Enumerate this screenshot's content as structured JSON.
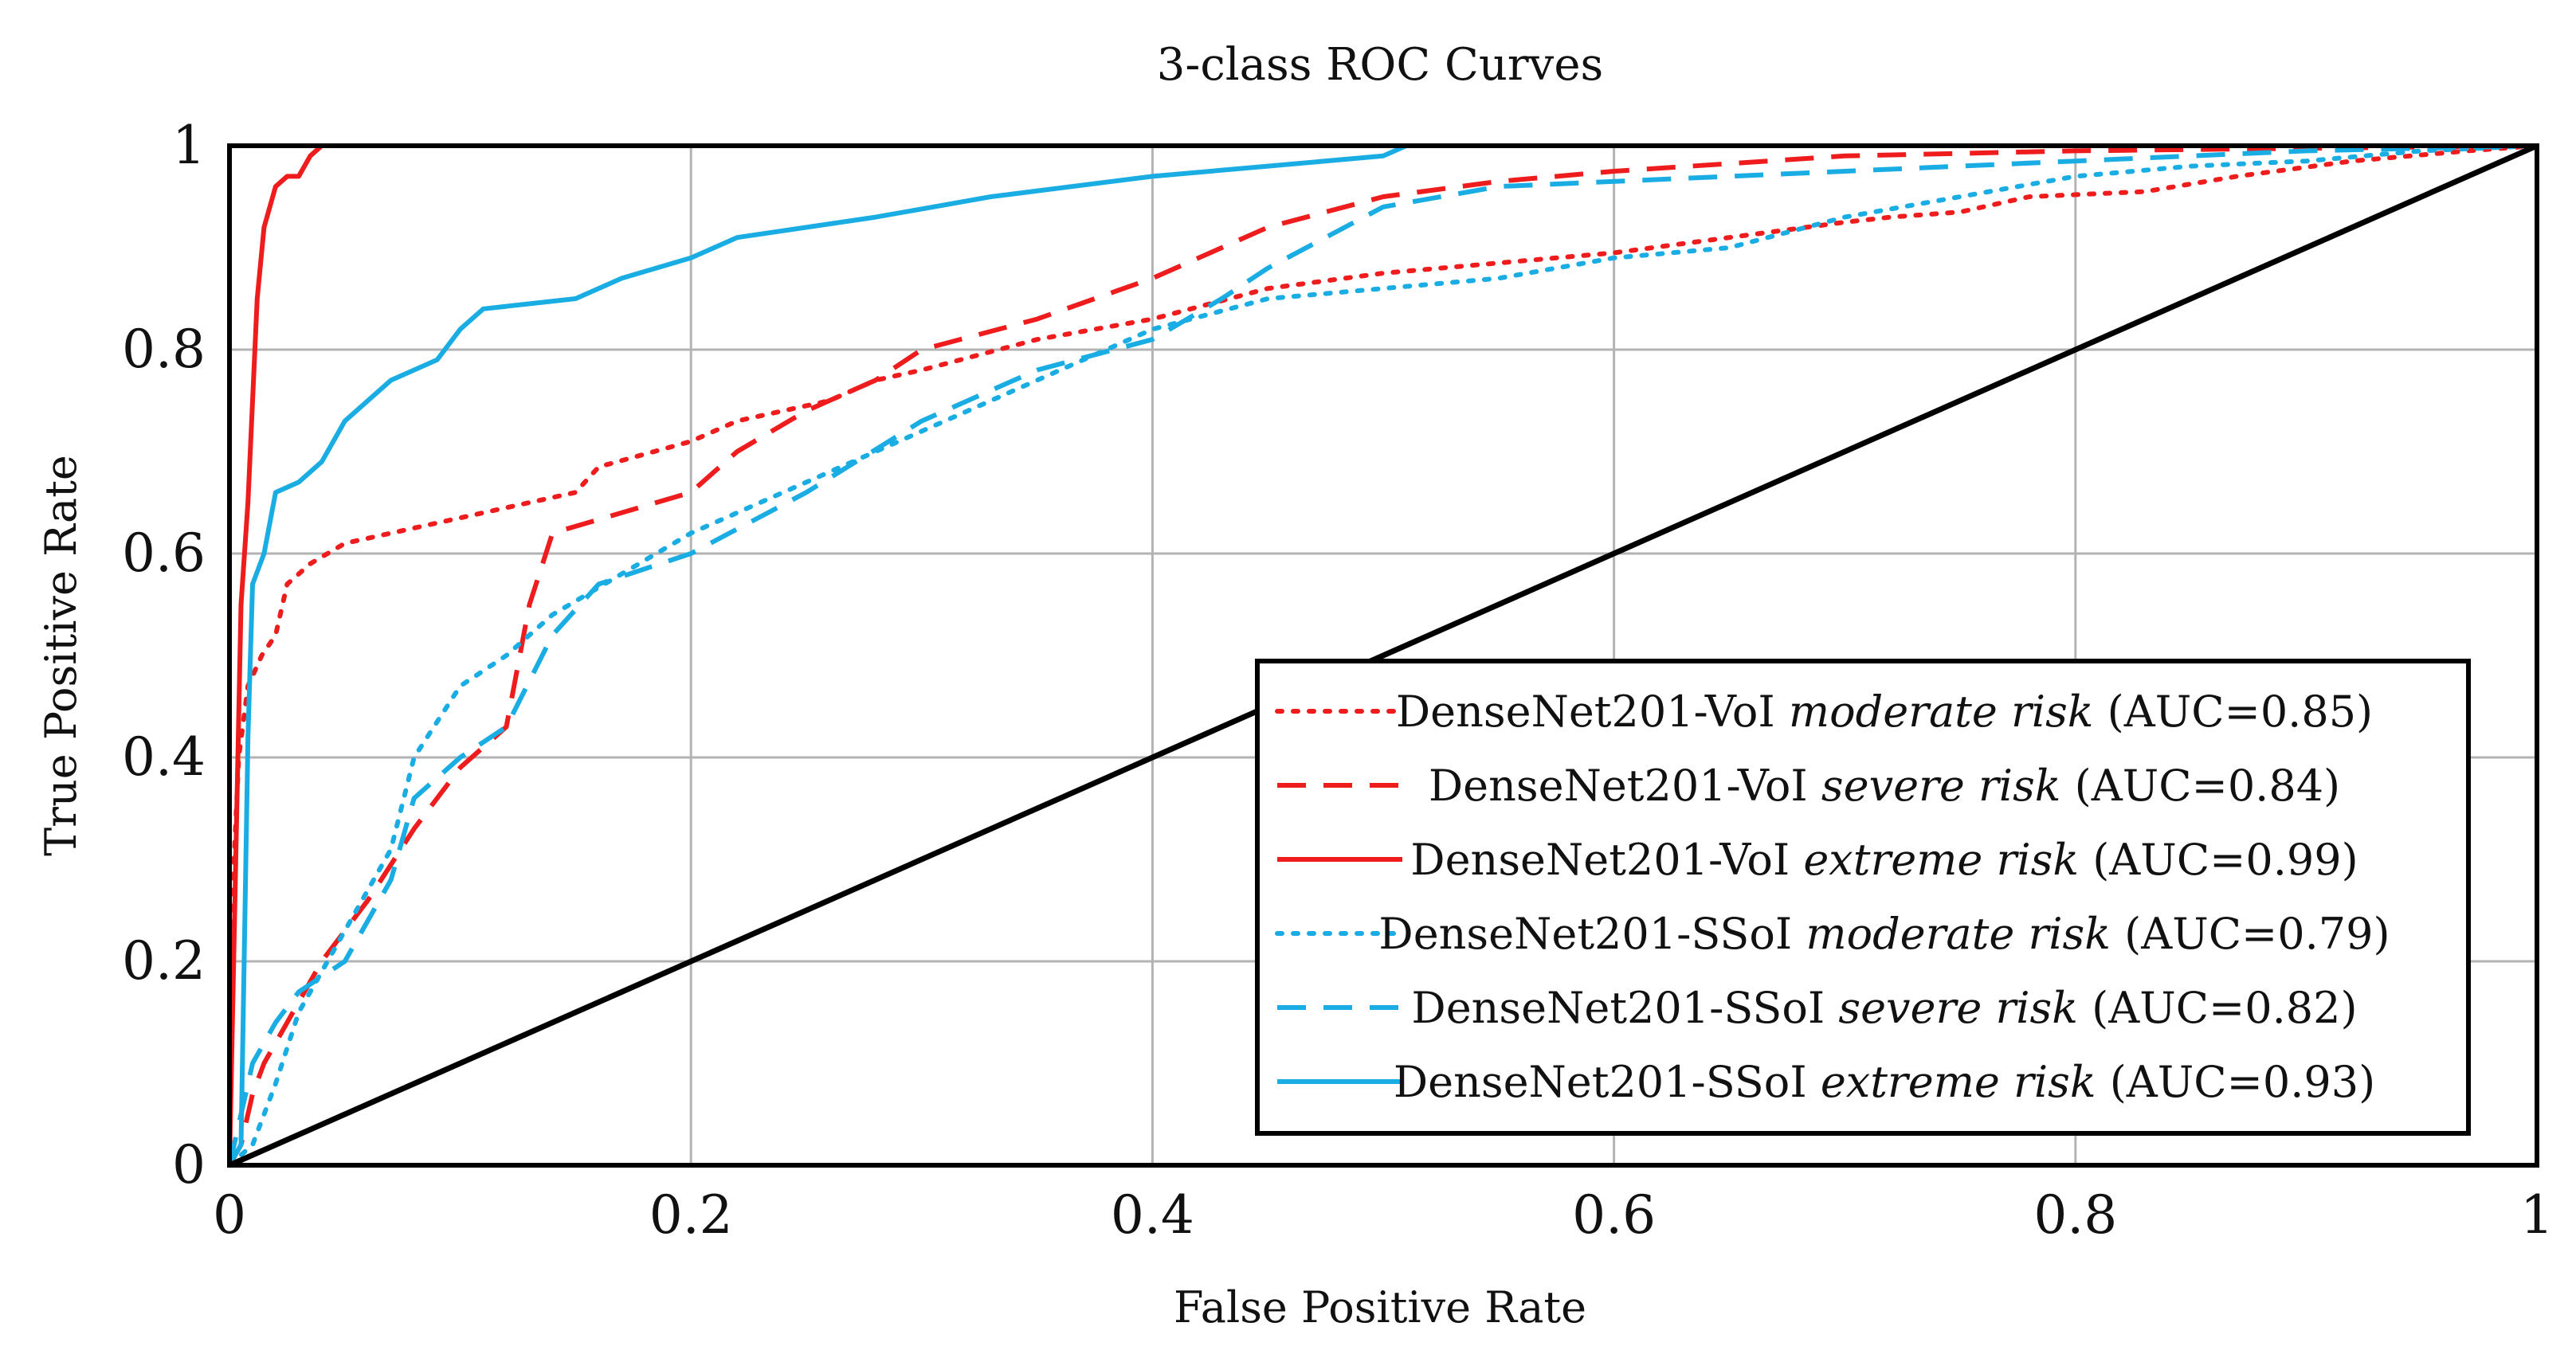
{
  "chart_data": {
    "type": "line",
    "title": "3-class ROC Curves",
    "xlabel": "False Positive Rate",
    "ylabel": "True Positive Rate",
    "xlim": [
      0,
      1
    ],
    "ylim": [
      0,
      1
    ],
    "grid": true,
    "legend_position": "bottom-right",
    "x_ticks": [
      0,
      0.2,
      0.4,
      0.6,
      0.8,
      1
    ],
    "y_ticks": [
      0,
      0.2,
      0.4,
      0.6,
      0.8,
      1
    ],
    "x_tick_labels": [
      "0",
      "0.2",
      "0.4",
      "0.6",
      "0.8",
      "1"
    ],
    "y_tick_labels": [
      "0",
      "0.2",
      "0.4",
      "0.6",
      "0.8",
      "1"
    ],
    "series": [
      {
        "name": "DenseNet201-VoI moderate risk (AUC=0.85)",
        "model": "DenseNet201-VoI",
        "risk": "moderate risk",
        "auc_label": "(AUC=0.85)",
        "color": "#ee1c1c",
        "style": "dotted",
        "points": [
          [
            0,
            0
          ],
          [
            0.002,
            0.3
          ],
          [
            0.004,
            0.4
          ],
          [
            0.008,
            0.47
          ],
          [
            0.014,
            0.5
          ],
          [
            0.02,
            0.52
          ],
          [
            0.025,
            0.57
          ],
          [
            0.035,
            0.59
          ],
          [
            0.05,
            0.61
          ],
          [
            0.08,
            0.625
          ],
          [
            0.12,
            0.645
          ],
          [
            0.15,
            0.66
          ],
          [
            0.16,
            0.685
          ],
          [
            0.2,
            0.71
          ],
          [
            0.22,
            0.73
          ],
          [
            0.26,
            0.75
          ],
          [
            0.28,
            0.77
          ],
          [
            0.3,
            0.78
          ],
          [
            0.35,
            0.81
          ],
          [
            0.4,
            0.83
          ],
          [
            0.45,
            0.86
          ],
          [
            0.5,
            0.875
          ],
          [
            0.55,
            0.885
          ],
          [
            0.6,
            0.895
          ],
          [
            0.65,
            0.91
          ],
          [
            0.7,
            0.925
          ],
          [
            0.72,
            0.93
          ],
          [
            0.75,
            0.935
          ],
          [
            0.78,
            0.95
          ],
          [
            0.83,
            0.955
          ],
          [
            0.87,
            0.97
          ],
          [
            0.92,
            0.985
          ],
          [
            0.97,
            0.995
          ],
          [
            1,
            1
          ]
        ]
      },
      {
        "name": "DenseNet201-VoI severe risk (AUC=0.84)",
        "model": "DenseNet201-VoI",
        "risk": "severe risk",
        "auc_label": "(AUC=0.84)",
        "color": "#ee1c1c",
        "style": "dashed",
        "points": [
          [
            0,
            0
          ],
          [
            0.005,
            0.02
          ],
          [
            0.01,
            0.07
          ],
          [
            0.015,
            0.1
          ],
          [
            0.025,
            0.14
          ],
          [
            0.04,
            0.2
          ],
          [
            0.06,
            0.26
          ],
          [
            0.08,
            0.33
          ],
          [
            0.1,
            0.39
          ],
          [
            0.12,
            0.43
          ],
          [
            0.13,
            0.55
          ],
          [
            0.14,
            0.62
          ],
          [
            0.17,
            0.64
          ],
          [
            0.2,
            0.66
          ],
          [
            0.22,
            0.7
          ],
          [
            0.25,
            0.74
          ],
          [
            0.28,
            0.77
          ],
          [
            0.3,
            0.8
          ],
          [
            0.35,
            0.83
          ],
          [
            0.4,
            0.87
          ],
          [
            0.45,
            0.92
          ],
          [
            0.5,
            0.95
          ],
          [
            0.55,
            0.965
          ],
          [
            0.6,
            0.975
          ],
          [
            0.7,
            0.99
          ],
          [
            0.8,
            0.995
          ],
          [
            1,
            1
          ]
        ]
      },
      {
        "name": "DenseNet201-VoI extreme risk (AUC=0.99)",
        "model": "DenseNet201-VoI",
        "risk": "extreme risk",
        "auc_label": "(AUC=0.99)",
        "color": "#ee1c1c",
        "style": "solid",
        "points": [
          [
            0,
            0
          ],
          [
            0.005,
            0.55
          ],
          [
            0.008,
            0.65
          ],
          [
            0.01,
            0.75
          ],
          [
            0.012,
            0.85
          ],
          [
            0.015,
            0.92
          ],
          [
            0.02,
            0.96
          ],
          [
            0.025,
            0.97
          ],
          [
            0.03,
            0.97
          ],
          [
            0.035,
            0.99
          ],
          [
            0.04,
            1
          ],
          [
            1,
            1
          ]
        ]
      },
      {
        "name": "DenseNet201-SSoI moderate risk (AUC=0.79)",
        "model": "DenseNet201-SSoI",
        "risk": "moderate risk",
        "auc_label": "(AUC=0.79)",
        "color": "#1aade4",
        "style": "dotted",
        "points": [
          [
            0,
            0
          ],
          [
            0.01,
            0.02
          ],
          [
            0.02,
            0.08
          ],
          [
            0.03,
            0.15
          ],
          [
            0.05,
            0.23
          ],
          [
            0.07,
            0.31
          ],
          [
            0.08,
            0.4
          ],
          [
            0.1,
            0.47
          ],
          [
            0.12,
            0.5
          ],
          [
            0.14,
            0.54
          ],
          [
            0.17,
            0.58
          ],
          [
            0.2,
            0.62
          ],
          [
            0.25,
            0.67
          ],
          [
            0.3,
            0.72
          ],
          [
            0.35,
            0.77
          ],
          [
            0.4,
            0.82
          ],
          [
            0.45,
            0.85
          ],
          [
            0.5,
            0.86
          ],
          [
            0.55,
            0.87
          ],
          [
            0.6,
            0.89
          ],
          [
            0.65,
            0.9
          ],
          [
            0.7,
            0.93
          ],
          [
            0.75,
            0.95
          ],
          [
            0.8,
            0.97
          ],
          [
            0.85,
            0.98
          ],
          [
            0.9,
            0.985
          ],
          [
            0.95,
            0.995
          ],
          [
            1,
            1
          ]
        ]
      },
      {
        "name": "DenseNet201-SSoI severe risk (AUC=0.82)",
        "model": "DenseNet201-SSoI",
        "risk": "severe risk",
        "auc_label": "(AUC=0.82)",
        "color": "#1aade4",
        "style": "dashed",
        "points": [
          [
            0,
            0
          ],
          [
            0.005,
            0.05
          ],
          [
            0.01,
            0.1
          ],
          [
            0.02,
            0.14
          ],
          [
            0.03,
            0.17
          ],
          [
            0.05,
            0.2
          ],
          [
            0.07,
            0.28
          ],
          [
            0.08,
            0.36
          ],
          [
            0.1,
            0.4
          ],
          [
            0.12,
            0.43
          ],
          [
            0.14,
            0.52
          ],
          [
            0.16,
            0.57
          ],
          [
            0.2,
            0.6
          ],
          [
            0.25,
            0.66
          ],
          [
            0.3,
            0.73
          ],
          [
            0.35,
            0.78
          ],
          [
            0.4,
            0.81
          ],
          [
            0.43,
            0.85
          ],
          [
            0.45,
            0.88
          ],
          [
            0.5,
            0.94
          ],
          [
            0.55,
            0.96
          ],
          [
            0.6,
            0.965
          ],
          [
            0.7,
            0.975
          ],
          [
            0.8,
            0.985
          ],
          [
            0.9,
            0.995
          ],
          [
            1,
            1
          ]
        ]
      },
      {
        "name": "DenseNet201-SSoI extreme risk (AUC=0.93)",
        "model": "DenseNet201-SSoI",
        "risk": "extreme risk",
        "auc_label": "(AUC=0.93)",
        "color": "#1aade4",
        "style": "solid",
        "points": [
          [
            0,
            0
          ],
          [
            0.005,
            0.02
          ],
          [
            0.008,
            0.42
          ],
          [
            0.01,
            0.57
          ],
          [
            0.015,
            0.6
          ],
          [
            0.02,
            0.66
          ],
          [
            0.03,
            0.67
          ],
          [
            0.04,
            0.69
          ],
          [
            0.05,
            0.73
          ],
          [
            0.07,
            0.77
          ],
          [
            0.09,
            0.79
          ],
          [
            0.1,
            0.82
          ],
          [
            0.11,
            0.84
          ],
          [
            0.15,
            0.85
          ],
          [
            0.17,
            0.87
          ],
          [
            0.2,
            0.89
          ],
          [
            0.22,
            0.91
          ],
          [
            0.28,
            0.93
          ],
          [
            0.33,
            0.95
          ],
          [
            0.4,
            0.97
          ],
          [
            0.45,
            0.98
          ],
          [
            0.5,
            0.99
          ],
          [
            0.51,
            1
          ],
          [
            1,
            1
          ]
        ]
      },
      {
        "name": "chance diagonal",
        "model": "",
        "risk": "",
        "auc_label": "",
        "color": "#000000",
        "style": "solid",
        "in_legend": false,
        "points": [
          [
            0,
            0
          ],
          [
            1,
            1
          ]
        ]
      }
    ]
  }
}
